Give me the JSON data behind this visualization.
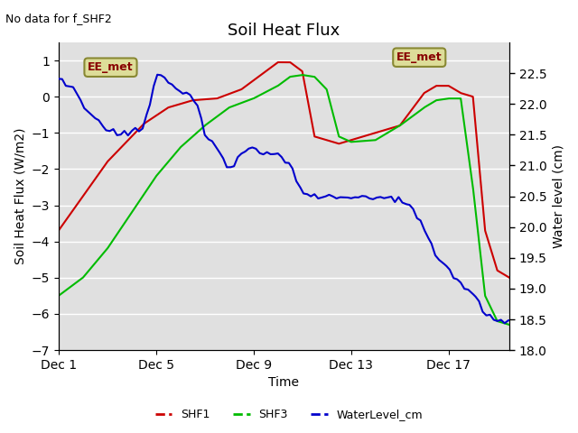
{
  "title": "Soil Heat Flux",
  "top_left_text": "No data for f_SHF2",
  "ylabel_left": "Soil Heat Flux (W/m2)",
  "ylabel_right": "Water level (cm)",
  "xlabel": "Time",
  "ylim_left": [
    -7.0,
    1.5
  ],
  "ylim_right": [
    18.0,
    23.0
  ],
  "yticks_left": [
    -7.0,
    -6.0,
    -5.0,
    -4.0,
    -3.0,
    -2.0,
    -1.0,
    0.0,
    1.0
  ],
  "yticks_right": [
    18.0,
    18.5,
    19.0,
    19.5,
    20.0,
    20.5,
    21.0,
    21.5,
    22.0,
    22.5
  ],
  "xtick_positions": [
    0,
    4,
    8,
    12,
    16
  ],
  "xtick_labels": [
    "Dec 1",
    "Dec 5",
    "Dec 9",
    "Dec 13",
    "Dec 17"
  ],
  "plot_bg_color": "#e0e0e0",
  "grid_color": "#ffffff",
  "shf1_color": "#cc0000",
  "shf3_color": "#00bb00",
  "water_color": "#0000cc",
  "annotation_text": "EE_met",
  "annotation_box_facecolor": "#dddd99",
  "annotation_box_edgecolor": "#888833",
  "annotation_text_color": "#880000",
  "legend_dash": "--"
}
